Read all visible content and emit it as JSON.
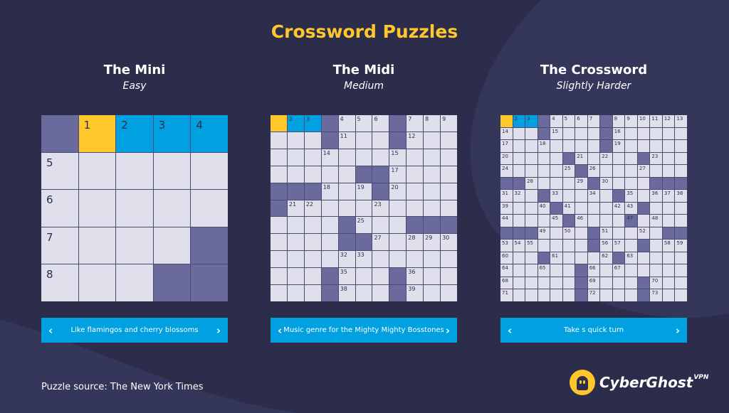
{
  "title": "Crossword Puzzles",
  "source": "Puzzle source: The New York Times",
  "brand": {
    "name": "CyberGhost",
    "suffix": "VPN"
  },
  "colors": {
    "background": "#2c2d4a",
    "accent": "#ffc72c",
    "blue": "#00a0e1",
    "block": "#6a6a9c",
    "cell": "#e0e0ec"
  },
  "icons": {
    "prev": "chevron-left-icon",
    "next": "chevron-right-icon",
    "logo": "ghost-icon"
  },
  "puzzles": [
    {
      "name": "The Mini",
      "difficulty": "Easy",
      "size": 5,
      "clue": "Like flamingos and cherry blossoms",
      "prev_arrow": "‹",
      "next_arrow": "›",
      "blocks": [
        [
          0,
          0
        ],
        [
          3,
          4
        ],
        [
          4,
          3
        ],
        [
          4,
          4
        ]
      ],
      "selected": [
        0,
        1
      ],
      "word": [
        [
          0,
          2
        ],
        [
          0,
          3
        ],
        [
          0,
          4
        ]
      ],
      "numbers": [
        [
          0,
          1,
          "1"
        ],
        [
          0,
          2,
          "2"
        ],
        [
          0,
          3,
          "3"
        ],
        [
          0,
          4,
          "4"
        ],
        [
          1,
          0,
          "5"
        ],
        [
          2,
          0,
          "6"
        ],
        [
          3,
          0,
          "7"
        ],
        [
          4,
          0,
          "8"
        ]
      ]
    },
    {
      "name": "The Midi",
      "difficulty": "Medium",
      "size": 11,
      "clue": "Music genre for the Mighty Mighty Bosstones",
      "prev_arrow": "‹",
      "next_arrow": "›",
      "blocks": [
        [
          0,
          3
        ],
        [
          0,
          7
        ],
        [
          1,
          3
        ],
        [
          1,
          7
        ],
        [
          3,
          5
        ],
        [
          3,
          6
        ],
        [
          4,
          0
        ],
        [
          4,
          1
        ],
        [
          4,
          2
        ],
        [
          4,
          6
        ],
        [
          5,
          0
        ],
        [
          6,
          4
        ],
        [
          6,
          8
        ],
        [
          6,
          9
        ],
        [
          6,
          10
        ],
        [
          7,
          4
        ],
        [
          7,
          5
        ],
        [
          9,
          3
        ],
        [
          9,
          7
        ],
        [
          10,
          3
        ],
        [
          10,
          7
        ]
      ],
      "selected": [
        0,
        0
      ],
      "word": [
        [
          0,
          1
        ],
        [
          0,
          2
        ]
      ],
      "numbers": [
        [
          0,
          1,
          "2"
        ],
        [
          0,
          2,
          "3"
        ],
        [
          0,
          4,
          "4"
        ],
        [
          0,
          5,
          "5"
        ],
        [
          0,
          6,
          "6"
        ],
        [
          0,
          8,
          "7"
        ],
        [
          0,
          9,
          "8"
        ],
        [
          0,
          10,
          "9"
        ],
        [
          1,
          4,
          "11"
        ],
        [
          1,
          8,
          "12"
        ],
        [
          2,
          3,
          "14"
        ],
        [
          2,
          7,
          "15"
        ],
        [
          3,
          7,
          "17"
        ],
        [
          4,
          3,
          "18"
        ],
        [
          4,
          5,
          "19"
        ],
        [
          4,
          7,
          "20"
        ],
        [
          5,
          1,
          "21"
        ],
        [
          5,
          2,
          "22"
        ],
        [
          5,
          6,
          "23"
        ],
        [
          6,
          5,
          "25"
        ],
        [
          7,
          6,
          "27"
        ],
        [
          7,
          8,
          "28"
        ],
        [
          7,
          9,
          "29"
        ],
        [
          7,
          10,
          "30"
        ],
        [
          8,
          4,
          "32"
        ],
        [
          8,
          5,
          "33"
        ],
        [
          9,
          4,
          "35"
        ],
        [
          9,
          8,
          "36"
        ],
        [
          10,
          4,
          "38"
        ],
        [
          10,
          8,
          "39"
        ]
      ]
    },
    {
      "name": "The Crossword",
      "difficulty": "Slightly Harder",
      "size": 15,
      "clue": "Take s quick turn",
      "prev_arrow": "‹",
      "next_arrow": "›",
      "blocks": [
        [
          0,
          3
        ],
        [
          0,
          8
        ],
        [
          1,
          3
        ],
        [
          1,
          8
        ],
        [
          2,
          8
        ],
        [
          3,
          5
        ],
        [
          3,
          11
        ],
        [
          4,
          6
        ],
        [
          5,
          0
        ],
        [
          5,
          1
        ],
        [
          5,
          7
        ],
        [
          5,
          12
        ],
        [
          5,
          13
        ],
        [
          5,
          14
        ],
        [
          6,
          3
        ],
        [
          6,
          9
        ],
        [
          7,
          4
        ],
        [
          7,
          11
        ],
        [
          8,
          5
        ],
        [
          8,
          10
        ],
        [
          9,
          0
        ],
        [
          9,
          1
        ],
        [
          9,
          2
        ],
        [
          9,
          7
        ],
        [
          9,
          13
        ],
        [
          9,
          14
        ],
        [
          10,
          7
        ],
        [
          10,
          11
        ],
        [
          11,
          3
        ],
        [
          11,
          9
        ],
        [
          12,
          6
        ],
        [
          13,
          6
        ],
        [
          13,
          11
        ],
        [
          14,
          6
        ],
        [
          14,
          11
        ]
      ],
      "selected": [
        0,
        0
      ],
      "word": [
        [
          0,
          1
        ],
        [
          0,
          2
        ]
      ],
      "numbers": [
        [
          0,
          1,
          "2"
        ],
        [
          0,
          2,
          "3"
        ],
        [
          0,
          4,
          "4"
        ],
        [
          0,
          5,
          "5"
        ],
        [
          0,
          6,
          "6"
        ],
        [
          0,
          7,
          "7"
        ],
        [
          0,
          9,
          "8"
        ],
        [
          0,
          10,
          "9"
        ],
        [
          0,
          11,
          "10"
        ],
        [
          0,
          12,
          "11"
        ],
        [
          0,
          13,
          "12"
        ],
        [
          0,
          14,
          "13"
        ],
        [
          1,
          0,
          "14"
        ],
        [
          1,
          4,
          "15"
        ],
        [
          1,
          9,
          "16"
        ],
        [
          2,
          0,
          "17"
        ],
        [
          2,
          3,
          "18"
        ],
        [
          2,
          9,
          "19"
        ],
        [
          3,
          0,
          "20"
        ],
        [
          3,
          6,
          "21"
        ],
        [
          3,
          8,
          "22"
        ],
        [
          3,
          12,
          "23"
        ],
        [
          4,
          0,
          "24"
        ],
        [
          4,
          5,
          "25"
        ],
        [
          4,
          7,
          "26"
        ],
        [
          4,
          11,
          "27"
        ],
        [
          5,
          2,
          "28"
        ],
        [
          5,
          6,
          "29"
        ],
        [
          5,
          8,
          "30"
        ],
        [
          6,
          0,
          "31"
        ],
        [
          6,
          1,
          "32"
        ],
        [
          6,
          4,
          "33"
        ],
        [
          6,
          7,
          "34"
        ],
        [
          6,
          10,
          "35"
        ],
        [
          6,
          12,
          "36"
        ],
        [
          6,
          13,
          "37"
        ],
        [
          6,
          14,
          "38"
        ],
        [
          7,
          0,
          "39"
        ],
        [
          7,
          3,
          "40"
        ],
        [
          7,
          5,
          "41"
        ],
        [
          7,
          9,
          "42"
        ],
        [
          7,
          10,
          "43"
        ],
        [
          8,
          0,
          "44"
        ],
        [
          8,
          4,
          "45"
        ],
        [
          8,
          6,
          "46"
        ],
        [
          8,
          10,
          "47"
        ],
        [
          8,
          12,
          "48"
        ],
        [
          9,
          3,
          "49"
        ],
        [
          9,
          5,
          "50"
        ],
        [
          9,
          8,
          "51"
        ],
        [
          9,
          11,
          "52"
        ],
        [
          10,
          0,
          "53"
        ],
        [
          10,
          1,
          "54"
        ],
        [
          10,
          2,
          "55"
        ],
        [
          10,
          8,
          "56"
        ],
        [
          10,
          9,
          "57"
        ],
        [
          10,
          13,
          "58"
        ],
        [
          10,
          14,
          "59"
        ],
        [
          11,
          0,
          "60"
        ],
        [
          11,
          4,
          "61"
        ],
        [
          11,
          8,
          "62"
        ],
        [
          11,
          10,
          "63"
        ],
        [
          12,
          0,
          "64"
        ],
        [
          12,
          3,
          "65"
        ],
        [
          12,
          7,
          "66"
        ],
        [
          12,
          9,
          "67"
        ],
        [
          13,
          0,
          "68"
        ],
        [
          13,
          7,
          "69"
        ],
        [
          13,
          12,
          "70"
        ],
        [
          14,
          0,
          "71"
        ],
        [
          14,
          7,
          "72"
        ],
        [
          14,
          12,
          "73"
        ]
      ]
    }
  ]
}
